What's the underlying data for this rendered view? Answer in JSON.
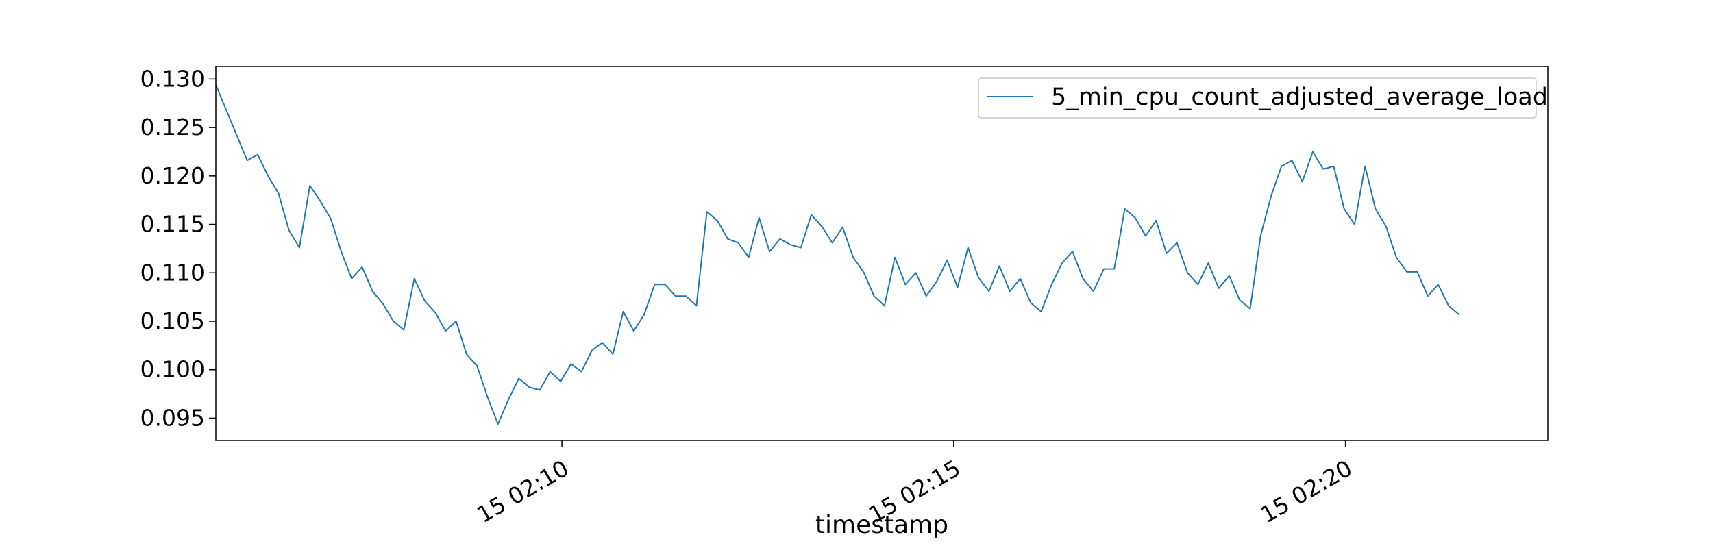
{
  "chart_data": {
    "type": "line",
    "title": "",
    "xlabel": "timestamp",
    "ylabel": "",
    "x_start": "02:05:35",
    "x_end": "02:22:35",
    "x_step_seconds": 8,
    "xlim": [
      "02:05:35",
      "02:22:35"
    ],
    "ylim": [
      0.0927,
      0.1313
    ],
    "grid": false,
    "legend_position": "top-right",
    "yticks": [
      0.095,
      0.1,
      0.105,
      0.11,
      0.115,
      0.12,
      0.125,
      0.13
    ],
    "ytick_labels": [
      "0.095",
      "0.100",
      "0.105",
      "0.110",
      "0.115",
      "0.120",
      "0.125",
      "0.130"
    ],
    "xticks": [
      "02:10:00",
      "02:15:00",
      "02:20:00"
    ],
    "xtick_labels": [
      "15 02:10",
      "15 02:15",
      "15 02:20"
    ],
    "series": [
      {
        "name": "5_min_cpu_count_adjusted_average_load",
        "color": "#1f77b4",
        "values": [
          0.1294,
          0.1268,
          0.1242,
          0.1216,
          0.1222,
          0.12,
          0.1182,
          0.1144,
          0.1126,
          0.119,
          0.1174,
          0.1156,
          0.1122,
          0.1094,
          0.1106,
          0.1081,
          0.1068,
          0.105,
          0.1041,
          0.1094,
          0.1071,
          0.1059,
          0.104,
          0.105,
          0.1016,
          0.1004,
          0.0972,
          0.0944,
          0.0969,
          0.0991,
          0.0982,
          0.0979,
          0.0998,
          0.0988,
          0.1006,
          0.0998,
          0.102,
          0.1028,
          0.1016,
          0.106,
          0.104,
          0.1057,
          0.1088,
          0.1088,
          0.1076,
          0.1076,
          0.1066,
          0.1163,
          0.1154,
          0.1135,
          0.1131,
          0.1116,
          0.1157,
          0.1122,
          0.1135,
          0.1129,
          0.1126,
          0.116,
          0.1148,
          0.1131,
          0.1147,
          0.1116,
          0.1101,
          0.1076,
          0.1066,
          0.1116,
          0.1088,
          0.11,
          0.1076,
          0.1091,
          0.1113,
          0.1085,
          0.1126,
          0.1095,
          0.1081,
          0.1107,
          0.1081,
          0.1094,
          0.1069,
          0.106,
          0.1088,
          0.111,
          0.1122,
          0.1094,
          0.1081,
          0.1104,
          0.1104,
          0.1166,
          0.1157,
          0.1138,
          0.1154,
          0.112,
          0.1131,
          0.11,
          0.1088,
          0.111,
          0.1084,
          0.1097,
          0.1072,
          0.1063,
          0.1138,
          0.1179,
          0.121,
          0.1216,
          0.1194,
          0.1225,
          0.1207,
          0.121,
          0.1166,
          0.115,
          0.121,
          0.1166,
          0.1148,
          0.1116,
          0.1101,
          0.1101,
          0.1076,
          0.1088,
          0.1066,
          0.1057
        ]
      }
    ]
  }
}
